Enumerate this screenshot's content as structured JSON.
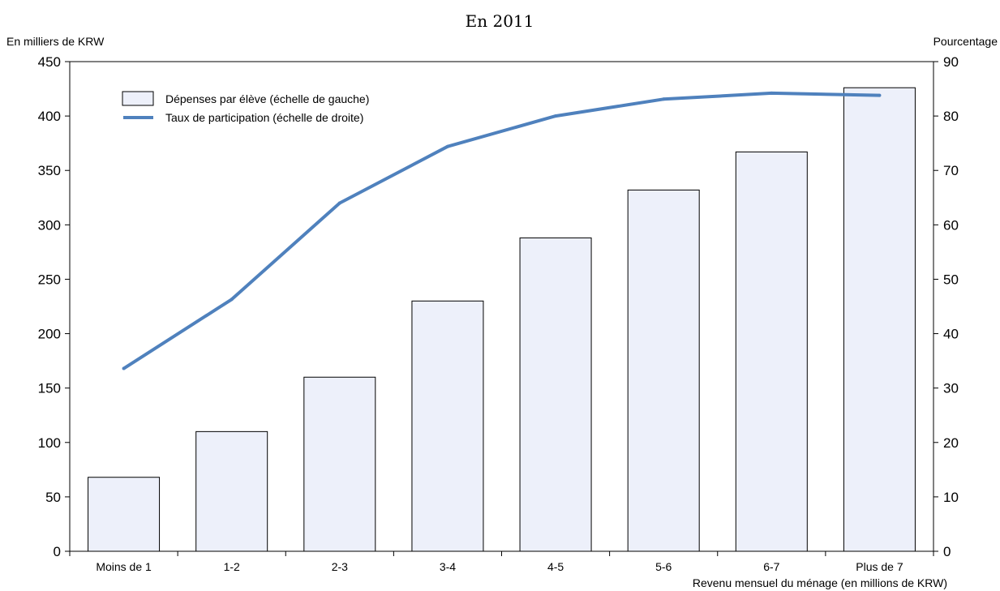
{
  "chart_data": {
    "type": "bar+line",
    "title": "En 2011",
    "xlabel": "Revenu mensuel du ménage (en millions de KRW)",
    "ylabel_left": "En milliers de KRW",
    "ylabel_right": "Pourcentage",
    "categories": [
      "Moins de 1",
      "1-2",
      "2-3",
      "3-4",
      "4-5",
      "5-6",
      "6-7",
      "Plus de 7"
    ],
    "ylim_left": [
      0,
      450
    ],
    "ylim_right": [
      0,
      90
    ],
    "yticks_left": [
      0,
      50,
      100,
      150,
      200,
      250,
      300,
      350,
      400,
      450
    ],
    "yticks_right": [
      0,
      10,
      20,
      30,
      40,
      50,
      60,
      70,
      80,
      90
    ],
    "grid": false,
    "legend_position": "top-left",
    "series": [
      {
        "name": "Dépenses par élève (échelle de gauche)",
        "kind": "bar",
        "axis": "left",
        "values": [
          68,
          110,
          160,
          230,
          288,
          332,
          367,
          426
        ],
        "fill": "#edf0fa",
        "stroke": "#000000"
      },
      {
        "name": "Taux de participation (échelle de droite)",
        "kind": "line",
        "axis": "right",
        "values": [
          33.6,
          46.3,
          64.0,
          74.4,
          80.0,
          83.1,
          84.2,
          83.8
        ],
        "color": "#4f81bd"
      }
    ]
  }
}
